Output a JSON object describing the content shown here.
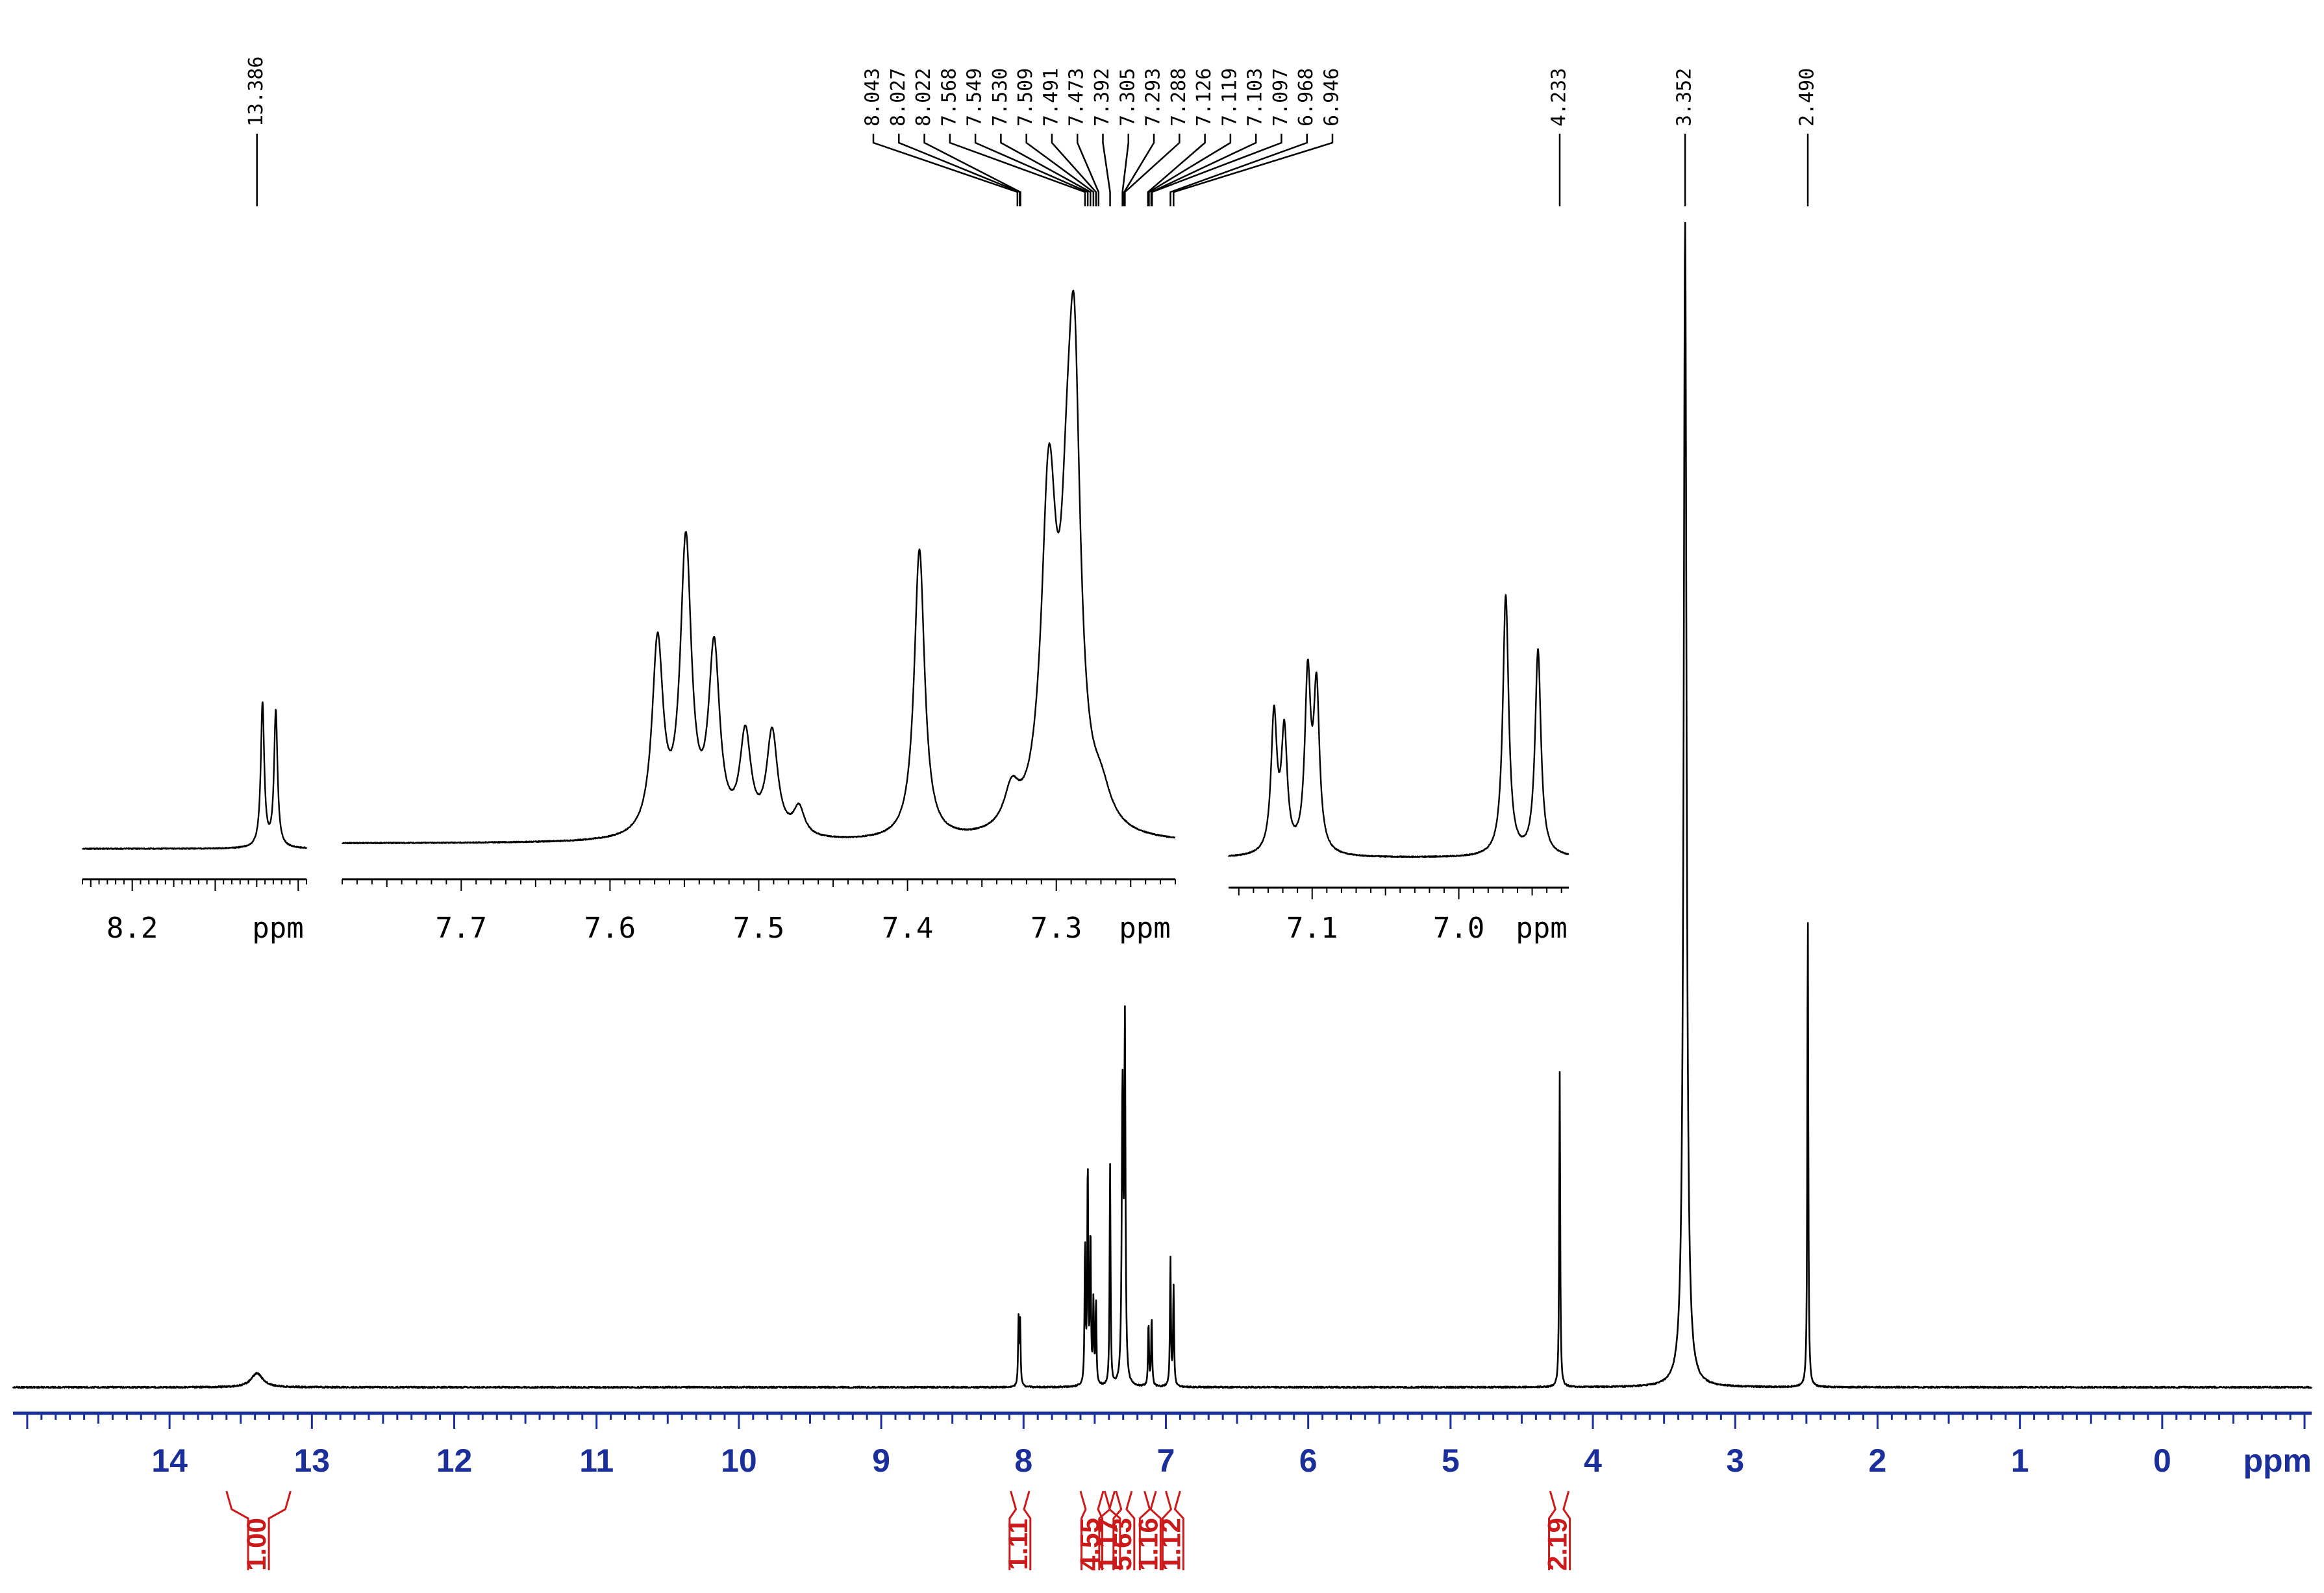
{
  "chart_data": [
    {
      "id": "main",
      "type": "line",
      "title": "",
      "xlabel": "ppm",
      "ylabel": "",
      "xlim": [
        15.1,
        -1.05
      ],
      "x_reversed": true,
      "x_ticks": [
        "14",
        "13",
        "12",
        "11",
        "10",
        "9",
        "8",
        "7",
        "6",
        "5",
        "4",
        "3",
        "2",
        "1",
        "0"
      ],
      "x_tick_values": [
        14,
        13,
        12,
        11,
        10,
        9,
        8,
        7,
        6,
        5,
        4,
        3,
        2,
        1,
        0
      ],
      "grid": false,
      "legend": "none",
      "colors": {
        "trace": "#000000",
        "axis": "#1a2f9a",
        "integral": "#cc1a1a"
      },
      "peak_labels": [
        "13.386",
        "8.043",
        "8.027",
        "8.022",
        "7.568",
        "7.549",
        "7.530",
        "7.509",
        "7.491",
        "7.473",
        "7.392",
        "7.305",
        "7.293",
        "7.288",
        "7.126",
        "7.119",
        "7.103",
        "7.097",
        "6.968",
        "6.946",
        "4.233",
        "3.352",
        "2.490"
      ],
      "peak_label_ppm": [
        13.386,
        8.043,
        8.027,
        8.022,
        7.568,
        7.549,
        7.53,
        7.509,
        7.491,
        7.473,
        7.392,
        7.305,
        7.293,
        7.288,
        7.126,
        7.119,
        7.103,
        7.097,
        6.968,
        6.946,
        4.233,
        3.352,
        2.49
      ],
      "peaks": [
        {
          "ppm": 13.386,
          "height": 0.012,
          "width": 0.05
        },
        {
          "ppm": 8.035,
          "height": 0.056,
          "width": 0.004
        },
        {
          "ppm": 8.024,
          "height": 0.054,
          "width": 0.004
        },
        {
          "ppm": 7.568,
          "height": 0.12,
          "width": 0.004
        },
        {
          "ppm": 7.549,
          "height": 0.19,
          "width": 0.004
        },
        {
          "ppm": 7.53,
          "height": 0.13,
          "width": 0.004
        },
        {
          "ppm": 7.509,
          "height": 0.07,
          "width": 0.004
        },
        {
          "ppm": 7.491,
          "height": 0.07,
          "width": 0.004
        },
        {
          "ppm": 7.392,
          "height": 0.19,
          "width": 0.004
        },
        {
          "ppm": 7.305,
          "height": 0.25,
          "width": 0.006
        },
        {
          "ppm": 7.288,
          "height": 0.3,
          "width": 0.005
        },
        {
          "ppm": 7.122,
          "height": 0.055,
          "width": 0.004
        },
        {
          "ppm": 7.1,
          "height": 0.06,
          "width": 0.004
        },
        {
          "ppm": 6.968,
          "height": 0.11,
          "width": 0.004
        },
        {
          "ppm": 6.946,
          "height": 0.085,
          "width": 0.004
        },
        {
          "ppm": 4.233,
          "height": 0.27,
          "width": 0.004
        },
        {
          "ppm": 3.352,
          "height": 1.0,
          "width": 0.012
        },
        {
          "ppm": 2.49,
          "height": 0.41,
          "width": 0.004
        }
      ],
      "integrals": [
        {
          "label": "1.00",
          "from": 13.6,
          "to": 13.15
        },
        {
          "label": "1.11",
          "from": 8.09,
          "to": 7.96
        },
        {
          "label": "4.55",
          "from": 7.6,
          "to": 7.44
        },
        {
          "label": "1.17",
          "from": 7.43,
          "to": 7.36
        },
        {
          "label": "5.63",
          "from": 7.35,
          "to": 7.24
        },
        {
          "label": "1.16",
          "from": 7.15,
          "to": 7.07
        },
        {
          "label": "1.12",
          "from": 7.0,
          "to": 6.9
        },
        {
          "label": "2.19",
          "from": 4.3,
          "to": 4.17
        }
      ]
    },
    {
      "id": "inset-1",
      "type": "line",
      "title": "",
      "xlabel": "ppm",
      "xlim": [
        8.26,
        7.99
      ],
      "x_ticks": [
        "8.2"
      ],
      "x_tick_values": [
        8.2
      ],
      "peaks": [
        {
          "ppm": 8.043,
          "height": 0.72,
          "width": 0.0025
        },
        {
          "ppm": 8.027,
          "height": 0.68,
          "width": 0.0025
        }
      ]
    },
    {
      "id": "inset-2",
      "type": "line",
      "title": "",
      "xlabel": "ppm",
      "xlim": [
        7.78,
        7.22
      ],
      "x_ticks": [
        "7.7",
        "7.6",
        "7.5",
        "7.4",
        "7.3"
      ],
      "x_tick_values": [
        7.7,
        7.6,
        7.5,
        7.4,
        7.3
      ],
      "peaks": [
        {
          "ppm": 7.568,
          "height": 0.41,
          "width": 0.0045
        },
        {
          "ppm": 7.549,
          "height": 0.62,
          "width": 0.0045
        },
        {
          "ppm": 7.53,
          "height": 0.39,
          "width": 0.0045
        },
        {
          "ppm": 7.509,
          "height": 0.21,
          "width": 0.0045
        },
        {
          "ppm": 7.491,
          "height": 0.22,
          "width": 0.0045
        },
        {
          "ppm": 7.473,
          "height": 0.06,
          "width": 0.0045
        },
        {
          "ppm": 7.392,
          "height": 0.62,
          "width": 0.0042
        },
        {
          "ppm": 7.33,
          "height": 0.08,
          "width": 0.006
        },
        {
          "ppm": 7.305,
          "height": 0.72,
          "width": 0.006
        },
        {
          "ppm": 7.293,
          "height": 0.35,
          "width": 0.005
        },
        {
          "ppm": 7.288,
          "height": 0.9,
          "width": 0.005
        },
        {
          "ppm": 7.27,
          "height": 0.07,
          "width": 0.008
        }
      ]
    },
    {
      "id": "inset-3",
      "type": "line",
      "title": "",
      "xlabel": "ppm",
      "xlim": [
        7.157,
        6.925
      ],
      "x_ticks": [
        "7.1",
        "7.0"
      ],
      "x_tick_values": [
        7.1,
        7.0
      ],
      "peaks": [
        {
          "ppm": 7.126,
          "height": 0.5,
          "width": 0.0024
        },
        {
          "ppm": 7.119,
          "height": 0.43,
          "width": 0.0024
        },
        {
          "ppm": 7.103,
          "height": 0.63,
          "width": 0.0024
        },
        {
          "ppm": 7.097,
          "height": 0.58,
          "width": 0.0024
        },
        {
          "ppm": 6.968,
          "height": 0.95,
          "width": 0.0024
        },
        {
          "ppm": 6.946,
          "height": 0.75,
          "width": 0.0024
        }
      ]
    }
  ]
}
